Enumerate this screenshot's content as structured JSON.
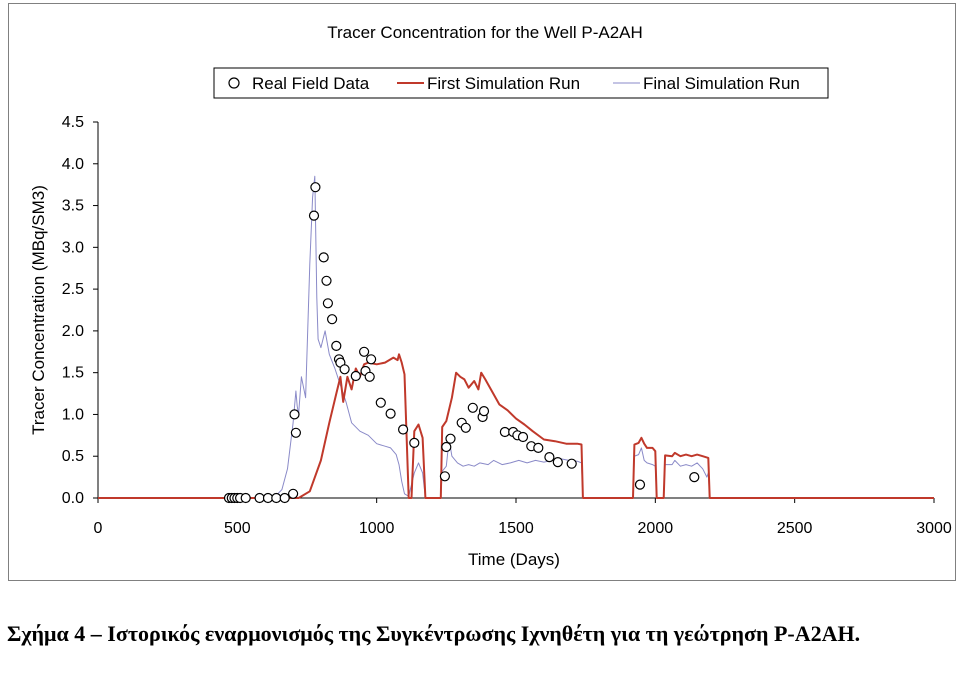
{
  "chart_data": {
    "type": "line",
    "title": "Tracer Concentration for the Well P-A2AH",
    "xlabel": "Time (Days)",
    "ylabel": "Tracer Concentration (MBq/SM3)",
    "xlim": [
      0,
      3000
    ],
    "ylim": [
      0,
      4.5
    ],
    "xticks": [
      "0",
      "500",
      "1000",
      "1500",
      "2000",
      "2500",
      "3000"
    ],
    "yticks": [
      "0.0",
      "0.5",
      "1.0",
      "1.5",
      "2.0",
      "2.5",
      "3.0",
      "3.5",
      "4.0",
      "4.5"
    ],
    "grid": false,
    "legend_position": "top",
    "series": [
      {
        "name": "Real Field Data",
        "style": "markers",
        "marker": "open-circle",
        "color": "#000000",
        "points": [
          [
            470,
            0
          ],
          [
            480,
            0
          ],
          [
            490,
            0
          ],
          [
            500,
            0
          ],
          [
            510,
            0
          ],
          [
            530,
            0
          ],
          [
            580,
            0
          ],
          [
            610,
            0
          ],
          [
            640,
            0
          ],
          [
            670,
            0
          ],
          [
            700,
            0.05
          ],
          [
            705,
            1.0
          ],
          [
            710,
            0.78
          ],
          [
            775,
            3.38
          ],
          [
            780,
            3.72
          ],
          [
            810,
            2.88
          ],
          [
            820,
            2.6
          ],
          [
            825,
            2.33
          ],
          [
            840,
            2.14
          ],
          [
            855,
            1.82
          ],
          [
            865,
            1.66
          ],
          [
            870,
            1.62
          ],
          [
            885,
            1.54
          ],
          [
            925,
            1.46
          ],
          [
            955,
            1.75
          ],
          [
            960,
            1.52
          ],
          [
            975,
            1.45
          ],
          [
            980,
            1.66
          ],
          [
            1015,
            1.14
          ],
          [
            1050,
            1.01
          ],
          [
            1095,
            0.82
          ],
          [
            1135,
            0.66
          ],
          [
            1245,
            0.26
          ],
          [
            1250,
            0.61
          ],
          [
            1265,
            0.71
          ],
          [
            1305,
            0.9
          ],
          [
            1320,
            0.84
          ],
          [
            1345,
            1.08
          ],
          [
            1380,
            0.97
          ],
          [
            1385,
            1.04
          ],
          [
            1460,
            0.79
          ],
          [
            1490,
            0.79
          ],
          [
            1505,
            0.75
          ],
          [
            1525,
            0.73
          ],
          [
            1555,
            0.62
          ],
          [
            1580,
            0.6
          ],
          [
            1620,
            0.49
          ],
          [
            1650,
            0.43
          ],
          [
            1700,
            0.41
          ],
          [
            1945,
            0.16
          ],
          [
            2140,
            0.25
          ]
        ]
      },
      {
        "name": "First Simulation Run",
        "style": "line",
        "color": "#c0392b",
        "points": [
          [
            0,
            0
          ],
          [
            720,
            0
          ],
          [
            760,
            0.08
          ],
          [
            800,
            0.45
          ],
          [
            830,
            0.9
          ],
          [
            855,
            1.25
          ],
          [
            870,
            1.45
          ],
          [
            880,
            1.15
          ],
          [
            895,
            1.45
          ],
          [
            910,
            1.3
          ],
          [
            925,
            1.55
          ],
          [
            940,
            1.45
          ],
          [
            955,
            1.6
          ],
          [
            970,
            1.62
          ],
          [
            1000,
            1.6
          ],
          [
            1030,
            1.62
          ],
          [
            1060,
            1.68
          ],
          [
            1075,
            1.65
          ],
          [
            1080,
            1.72
          ],
          [
            1090,
            1.62
          ],
          [
            1100,
            1.48
          ],
          [
            1115,
            0
          ],
          [
            1125,
            0
          ],
          [
            1135,
            0.8
          ],
          [
            1150,
            0.88
          ],
          [
            1165,
            0.72
          ],
          [
            1175,
            0
          ],
          [
            1230,
            0
          ],
          [
            1235,
            0.85
          ],
          [
            1250,
            0.92
          ],
          [
            1270,
            1.2
          ],
          [
            1285,
            1.5
          ],
          [
            1300,
            1.45
          ],
          [
            1315,
            1.42
          ],
          [
            1330,
            1.32
          ],
          [
            1350,
            1.4
          ],
          [
            1365,
            1.3
          ],
          [
            1375,
            1.5
          ],
          [
            1390,
            1.42
          ],
          [
            1410,
            1.3
          ],
          [
            1440,
            1.12
          ],
          [
            1470,
            1.05
          ],
          [
            1500,
            0.95
          ],
          [
            1530,
            0.88
          ],
          [
            1560,
            0.8
          ],
          [
            1600,
            0.7
          ],
          [
            1640,
            0.68
          ],
          [
            1680,
            0.65
          ],
          [
            1720,
            0.65
          ],
          [
            1735,
            0.64
          ],
          [
            1740,
            0
          ],
          [
            1920,
            0
          ],
          [
            1925,
            0.64
          ],
          [
            1940,
            0.66
          ],
          [
            1950,
            0.72
          ],
          [
            1960,
            0.65
          ],
          [
            1970,
            0.6
          ],
          [
            1990,
            0.6
          ],
          [
            2000,
            0.56
          ],
          [
            2005,
            0
          ],
          [
            2030,
            0
          ],
          [
            2035,
            0.51
          ],
          [
            2060,
            0.5
          ],
          [
            2070,
            0.54
          ],
          [
            2090,
            0.5
          ],
          [
            2110,
            0.52
          ],
          [
            2130,
            0.5
          ],
          [
            2150,
            0.52
          ],
          [
            2170,
            0.5
          ],
          [
            2190,
            0.48
          ],
          [
            2195,
            0
          ],
          [
            3000,
            0
          ]
        ]
      },
      {
        "name": "Final Simulation Run",
        "style": "line",
        "color": "#8a8ac8",
        "points": [
          [
            0,
            0
          ],
          [
            630,
            0
          ],
          [
            660,
            0.1
          ],
          [
            680,
            0.35
          ],
          [
            700,
            0.9
          ],
          [
            710,
            1.28
          ],
          [
            715,
            1.1
          ],
          [
            720,
            1.0
          ],
          [
            730,
            1.45
          ],
          [
            745,
            1.2
          ],
          [
            760,
            2.8
          ],
          [
            770,
            3.6
          ],
          [
            778,
            3.85
          ],
          [
            785,
            2.4
          ],
          [
            790,
            1.9
          ],
          [
            800,
            1.8
          ],
          [
            815,
            2.0
          ],
          [
            830,
            1.72
          ],
          [
            850,
            1.55
          ],
          [
            870,
            1.35
          ],
          [
            890,
            1.15
          ],
          [
            910,
            0.9
          ],
          [
            940,
            0.8
          ],
          [
            970,
            0.75
          ],
          [
            1000,
            0.65
          ],
          [
            1030,
            0.62
          ],
          [
            1050,
            0.6
          ],
          [
            1070,
            0.52
          ],
          [
            1080,
            0.4
          ],
          [
            1090,
            0.2
          ],
          [
            1100,
            0.05
          ],
          [
            1115,
            0.02
          ],
          [
            1135,
            0.3
          ],
          [
            1150,
            0.42
          ],
          [
            1165,
            0.3
          ],
          [
            1175,
            0
          ],
          [
            1230,
            0
          ],
          [
            1235,
            0.32
          ],
          [
            1250,
            0.38
          ],
          [
            1260,
            0.7
          ],
          [
            1270,
            0.5
          ],
          [
            1290,
            0.42
          ],
          [
            1310,
            0.38
          ],
          [
            1330,
            0.4
          ],
          [
            1350,
            0.38
          ],
          [
            1370,
            0.42
          ],
          [
            1400,
            0.4
          ],
          [
            1420,
            0.45
          ],
          [
            1450,
            0.4
          ],
          [
            1480,
            0.42
          ],
          [
            1510,
            0.45
          ],
          [
            1540,
            0.42
          ],
          [
            1570,
            0.45
          ],
          [
            1600,
            0.43
          ],
          [
            1630,
            0.45
          ],
          [
            1660,
            0.47
          ],
          [
            1690,
            0.45
          ],
          [
            1720,
            0.44
          ],
          [
            1735,
            0.42
          ],
          [
            1740,
            0
          ],
          [
            1920,
            0
          ],
          [
            1925,
            0.5
          ],
          [
            1940,
            0.52
          ],
          [
            1950,
            0.6
          ],
          [
            1960,
            0.45
          ],
          [
            1970,
            0.42
          ],
          [
            1990,
            0.4
          ],
          [
            2000,
            0.38
          ],
          [
            2005,
            0
          ],
          [
            2030,
            0
          ],
          [
            2035,
            0.4
          ],
          [
            2060,
            0.4
          ],
          [
            2070,
            0.45
          ],
          [
            2090,
            0.38
          ],
          [
            2110,
            0.4
          ],
          [
            2130,
            0.38
          ],
          [
            2150,
            0.42
          ],
          [
            2170,
            0.35
          ],
          [
            2185,
            0.25
          ],
          [
            2190,
            0.3
          ],
          [
            2195,
            0
          ],
          [
            3000,
            0
          ]
        ]
      }
    ]
  },
  "caption": "Σχήμα 4 – Ιστορικός εναρμονισμός της Συγκέντρωσης Ιχνηθέτη για τη γεώτρηση P-A2AH."
}
